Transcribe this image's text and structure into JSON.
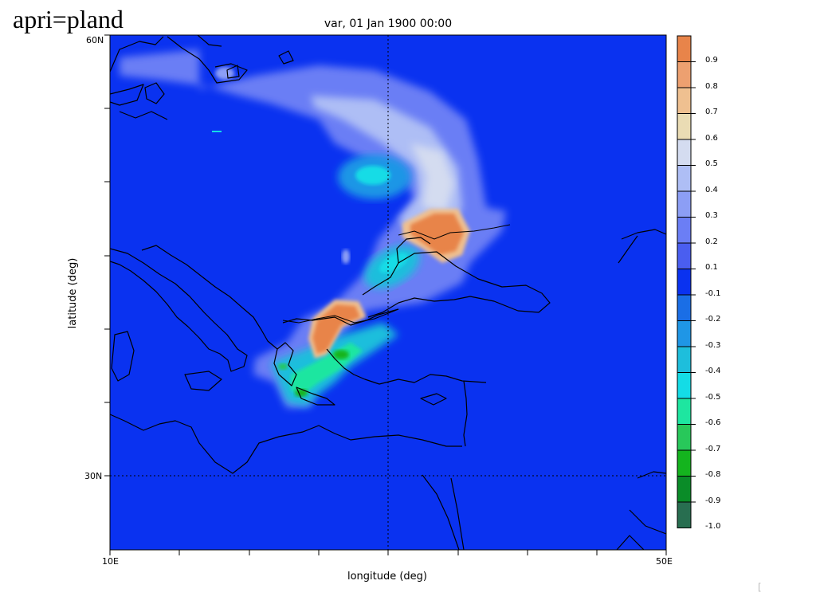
{
  "slide": {
    "title": "apri=pland"
  },
  "plot": {
    "title": "var, 01 Jan 1900 00:00",
    "xlabel": "longitude (deg)",
    "ylabel": "latitude (deg)",
    "lat_ticks": [
      "60N",
      "30N"
    ],
    "lon_ticks": [
      "10E",
      "50E"
    ],
    "lon_range": [
      10,
      50
    ],
    "lat_range": [
      25,
      60
    ],
    "grid": "dotted lines at 30E and 30N"
  },
  "colorbar": {
    "labels": [
      "0.9",
      "0.8",
      "0.7",
      "0.6",
      "0.5",
      "0.4",
      "0.3",
      "0.2",
      "0.1",
      "-0.1",
      "-0.2",
      "-0.3",
      "-0.4",
      "-0.5",
      "-0.6",
      "-0.7",
      "-0.8",
      "-0.9",
      "-1.0"
    ],
    "colors": [
      "#e8844a",
      "#eda070",
      "#efc090",
      "#eadcb4",
      "#d4dcf0",
      "#aebef5",
      "#8c9ef5",
      "#6b7ef5",
      "#4a5ef0",
      "#0a32f0",
      "#1a6ee6",
      "#1f96e6",
      "#1ebedc",
      "#14dce6",
      "#1ee6a0",
      "#28c85a",
      "#14b41e",
      "#0a8c28",
      "#286e50"
    ]
  },
  "corner": {
    "mark": "["
  }
}
